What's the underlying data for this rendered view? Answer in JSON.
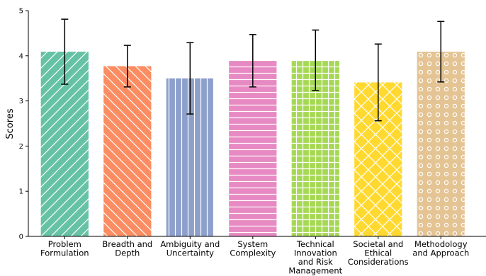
{
  "chart_data": {
    "type": "bar",
    "categories": [
      "Problem Formulation",
      "Breadth and Depth",
      "Ambiguity and Uncertainty",
      "System Complexity",
      "Technical Innovation and Risk Management",
      "Societal and Ethical Considerations",
      "Methodology and Approach"
    ],
    "category_lines": [
      [
        "Problem",
        "Formulation"
      ],
      [
        "Breadth and",
        "Depth"
      ],
      [
        "Ambiguity and",
        "Uncertainty"
      ],
      [
        "System",
        "Complexity"
      ],
      [
        "Technical",
        "Innovation",
        "and Risk",
        "Management"
      ],
      [
        "Societal and",
        "Ethical",
        "Considerations"
      ],
      [
        "Methodology",
        "and Approach"
      ]
    ],
    "values": [
      4.09,
      3.77,
      3.5,
      3.89,
      3.9,
      3.41,
      4.09
    ],
    "error": [
      0.72,
      0.46,
      0.79,
      0.58,
      0.67,
      0.85,
      0.67
    ],
    "colors": [
      "#66c2a5",
      "#fc8d62",
      "#8da0cb",
      "#e78ac3",
      "#a6d854",
      "#ffd92f",
      "#e5c494"
    ],
    "hatches": [
      "diagonal-forward",
      "diagonal-back",
      "vertical",
      "horizontal",
      "grid",
      "crosshatch",
      "circles"
    ],
    "title": "",
    "xlabel": "",
    "ylabel": "Scores",
    "ylim": [
      0,
      5
    ],
    "yticks": [
      "0",
      "1",
      "2",
      "3",
      "4",
      "5"
    ],
    "grid": false,
    "legend": "none"
  }
}
